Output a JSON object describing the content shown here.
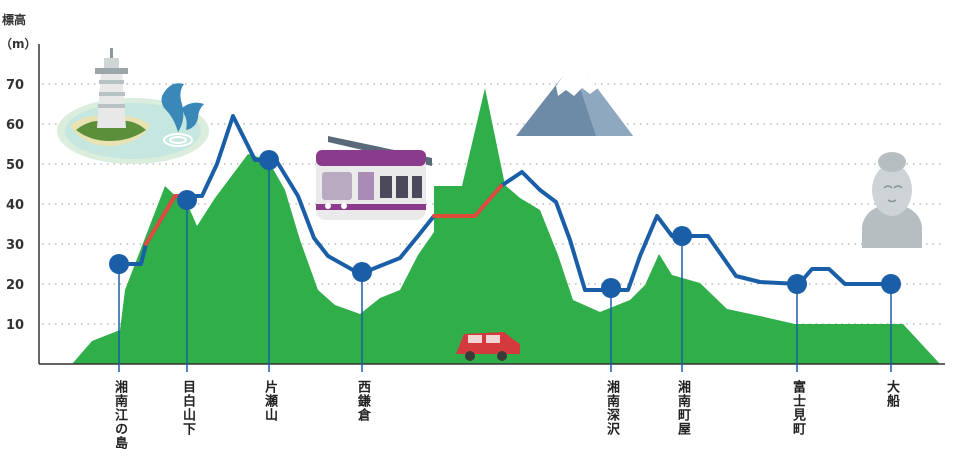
{
  "y_axis": {
    "label_line1": "標高",
    "label_line2": "（m）",
    "ticks": [
      {
        "label": "10",
        "value": 10
      },
      {
        "label": "20",
        "value": 20
      },
      {
        "label": "30",
        "value": 30
      },
      {
        "label": "40",
        "value": 40
      },
      {
        "label": "50",
        "value": 50
      },
      {
        "label": "60",
        "value": 60
      },
      {
        "label": "70",
        "value": 70
      }
    ]
  },
  "stations": [
    {
      "name": "湘南江の島",
      "elevation": 25
    },
    {
      "name": "目白山下",
      "elevation": 41
    },
    {
      "name": "片瀬山",
      "elevation": 51
    },
    {
      "name": "西鎌倉",
      "elevation": 23
    },
    {
      "name": "湘南深沢",
      "elevation": 19
    },
    {
      "name": "湘南町屋",
      "elevation": 32
    },
    {
      "name": "富士見町",
      "elevation": 20
    },
    {
      "name": "大船",
      "elevation": 20
    }
  ],
  "colors": {
    "terrain": "#2fae4a",
    "route": "#1a5ea8",
    "route_segment": "#e04b3c",
    "station": "#1a5ea8",
    "grid": "#bbbbbb",
    "axis": "#333333"
  },
  "illustrations": [
    {
      "name": "enoshima-island-icon"
    },
    {
      "name": "dolphins-icon"
    },
    {
      "name": "monorail-train-icon"
    },
    {
      "name": "mount-fuji-icon"
    },
    {
      "name": "car-icon"
    },
    {
      "name": "ofuna-kannon-statue-icon"
    }
  ]
}
